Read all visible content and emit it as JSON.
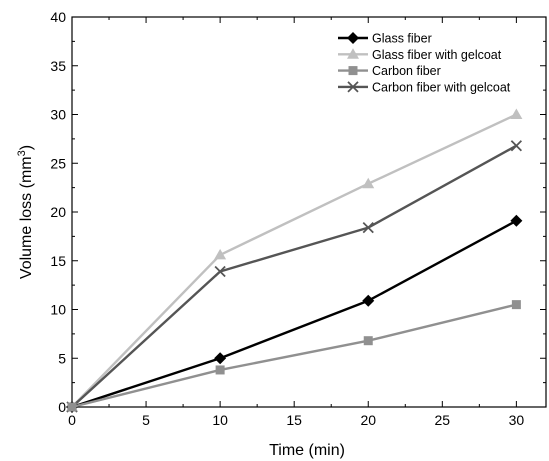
{
  "chart_data": {
    "type": "line",
    "xlabel": "Time (min)",
    "ylabel": "Volume loss (mm",
    "ylabel_superscript": "3",
    "ylabel_suffix": ")",
    "xlim": [
      0,
      32
    ],
    "ylim": [
      0,
      40
    ],
    "x_ticks": [
      "0",
      "5",
      "10",
      "15",
      "20",
      "25",
      "30"
    ],
    "y_ticks": [
      "0",
      "5",
      "10",
      "15",
      "20",
      "25",
      "30",
      "35",
      "40"
    ],
    "grid": false,
    "legend_position": "top-right",
    "x": [
      0,
      10,
      20,
      30
    ],
    "series": [
      {
        "name": "Glass fiber",
        "values": [
          0,
          5.0,
          10.9,
          19.1
        ],
        "color": "#000000",
        "marker": "diamond"
      },
      {
        "name": "Glass fiber with gelcoat",
        "values": [
          0,
          15.6,
          22.9,
          30.0
        ],
        "color": "#c0c0c0",
        "marker": "triangle"
      },
      {
        "name": "Carbon fiber",
        "values": [
          0,
          3.8,
          6.8,
          10.5
        ],
        "color": "#909090",
        "marker": "square"
      },
      {
        "name": "Carbon fiber with gelcoat",
        "values": [
          0,
          13.9,
          18.4,
          26.8
        ],
        "color": "#555555",
        "marker": "cross"
      }
    ]
  }
}
